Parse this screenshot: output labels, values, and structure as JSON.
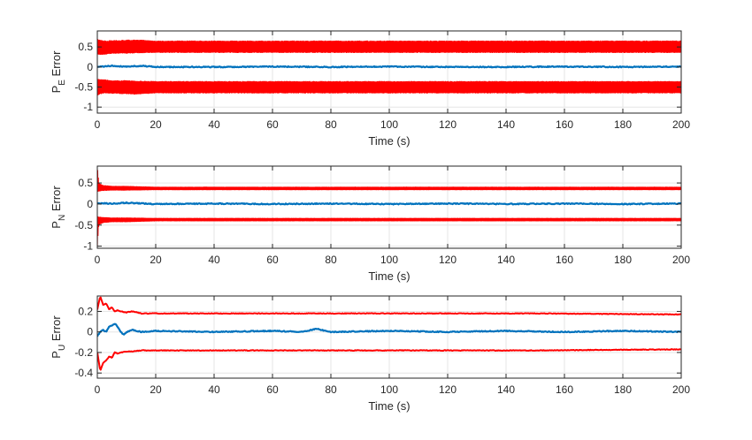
{
  "chart_data": [
    {
      "type": "line",
      "title": "",
      "xlabel": "Time (s)",
      "ylabel": "P_E Error",
      "ylabel_main": "P",
      "ylabel_sub": "E",
      "ylabel_rest": " Error",
      "xlim": [
        0,
        200
      ],
      "ylim": [
        -1.15,
        0.9
      ],
      "xticks": [
        0,
        20,
        40,
        60,
        80,
        100,
        120,
        140,
        160,
        180,
        200
      ],
      "yticks": [
        -1,
        -0.5,
        0,
        0.5
      ],
      "ytick_labels": [
        "-1",
        "-0.5",
        "0",
        "0.5"
      ],
      "grid": true,
      "series": [
        {
          "color": "#ff0000",
          "kind": "band",
          "x": [
            0,
            1,
            3,
            5,
            10,
            13,
            20,
            200
          ],
          "lower": [
            0.3,
            0.3,
            0.31,
            0.33,
            0.33,
            0.34,
            0.35,
            0.35
          ],
          "upper": [
            0.7,
            0.68,
            0.66,
            0.67,
            0.68,
            0.69,
            0.66,
            0.66
          ]
        },
        {
          "color": "#ff0000",
          "kind": "band",
          "x": [
            0,
            1,
            3,
            5,
            10,
            13,
            20,
            200
          ],
          "lower": [
            -0.72,
            -0.68,
            -0.66,
            -0.67,
            -0.68,
            -0.69,
            -0.66,
            -0.66
          ],
          "upper": [
            -0.3,
            -0.3,
            -0.31,
            -0.33,
            -0.33,
            -0.34,
            -0.35,
            -0.35
          ]
        },
        {
          "color": "#0072bd",
          "kind": "line",
          "x": [
            0,
            5,
            10,
            15,
            20,
            40,
            60,
            80,
            100,
            120,
            140,
            160,
            180,
            200
          ],
          "values": [
            0.0,
            0.03,
            0.01,
            0.03,
            0.0,
            0.0,
            0.01,
            0.0,
            0.01,
            0.0,
            0.0,
            0.01,
            0.0,
            0.01
          ]
        }
      ]
    },
    {
      "type": "line",
      "title": "",
      "xlabel": "Time (s)",
      "ylabel": "P_N Error",
      "ylabel_main": "P",
      "ylabel_sub": "N",
      "ylabel_rest": " Error",
      "xlim": [
        0,
        200
      ],
      "ylim": [
        -1.05,
        0.9
      ],
      "xticks": [
        0,
        20,
        40,
        60,
        80,
        100,
        120,
        140,
        160,
        180,
        200
      ],
      "yticks": [
        -1,
        -0.5,
        0,
        0.5
      ],
      "ytick_labels": [
        "-1",
        "-0.5",
        "0",
        "0.5"
      ],
      "grid": true,
      "series": [
        {
          "color": "#ff0000",
          "kind": "band",
          "x": [
            0,
            0.5,
            2,
            5,
            10,
            20,
            200
          ],
          "lower": [
            0.28,
            0.3,
            0.31,
            0.32,
            0.32,
            0.33,
            0.33
          ],
          "upper": [
            0.9,
            0.5,
            0.45,
            0.43,
            0.43,
            0.41,
            0.41
          ]
        },
        {
          "color": "#ff0000",
          "kind": "band",
          "x": [
            0,
            0.5,
            2,
            5,
            10,
            20,
            200
          ],
          "lower": [
            -1.0,
            -0.5,
            -0.45,
            -0.43,
            -0.43,
            -0.41,
            -0.41
          ],
          "upper": [
            -0.28,
            -0.3,
            -0.31,
            -0.32,
            -0.32,
            -0.33,
            -0.33
          ]
        },
        {
          "color": "#0072bd",
          "kind": "line",
          "x": [
            0,
            5,
            10,
            20,
            40,
            60,
            80,
            100,
            120,
            140,
            160,
            180,
            200
          ],
          "values": [
            0.02,
            0.01,
            0.03,
            0.0,
            0.01,
            0.0,
            0.01,
            0.0,
            0.01,
            0.0,
            0.01,
            0.0,
            0.01
          ]
        }
      ]
    },
    {
      "type": "line",
      "title": "",
      "xlabel": "Time (s)",
      "ylabel": "P_U Error",
      "ylabel_main": "P",
      "ylabel_sub": "U",
      "ylabel_rest": " Error",
      "xlim": [
        0,
        200
      ],
      "ylim": [
        -0.45,
        0.35
      ],
      "xticks": [
        0,
        20,
        40,
        60,
        80,
        100,
        120,
        140,
        160,
        180,
        200
      ],
      "yticks": [
        -0.4,
        -0.2,
        0,
        0.2
      ],
      "ytick_labels": [
        "-0.4",
        "-0.2",
        "0",
        "0.2"
      ],
      "grid": true,
      "series": [
        {
          "color": "#ff0000",
          "kind": "line",
          "x": [
            0,
            1,
            2,
            3,
            4,
            5,
            6,
            7,
            8,
            10,
            12,
            15,
            20,
            40,
            100,
            150,
            200
          ],
          "values": [
            0.22,
            0.35,
            0.26,
            0.28,
            0.22,
            0.24,
            0.2,
            0.21,
            0.2,
            0.19,
            0.2,
            0.18,
            0.18,
            0.18,
            0.18,
            0.18,
            0.17
          ]
        },
        {
          "color": "#ff0000",
          "kind": "line",
          "x": [
            0,
            1,
            2,
            3,
            4,
            5,
            6,
            7,
            8,
            10,
            12,
            15,
            20,
            40,
            100,
            150,
            200
          ],
          "values": [
            -0.2,
            -0.38,
            -0.3,
            -0.28,
            -0.24,
            -0.25,
            -0.2,
            -0.21,
            -0.2,
            -0.19,
            -0.19,
            -0.18,
            -0.18,
            -0.18,
            -0.18,
            -0.18,
            -0.17
          ]
        },
        {
          "color": "#0072bd",
          "kind": "line",
          "x": [
            0,
            1,
            2,
            3,
            4,
            5,
            6,
            7,
            8,
            9,
            10,
            12,
            15,
            20,
            40,
            60,
            70,
            75,
            80,
            100,
            120,
            140,
            160,
            180,
            200
          ],
          "values": [
            -0.04,
            0.0,
            0.02,
            0.0,
            0.05,
            0.06,
            0.08,
            0.05,
            0.0,
            -0.03,
            0.0,
            0.02,
            0.0,
            0.01,
            0.0,
            0.01,
            0.0,
            0.03,
            0.0,
            0.01,
            0.0,
            0.01,
            0.0,
            0.01,
            0.0
          ]
        }
      ]
    }
  ]
}
